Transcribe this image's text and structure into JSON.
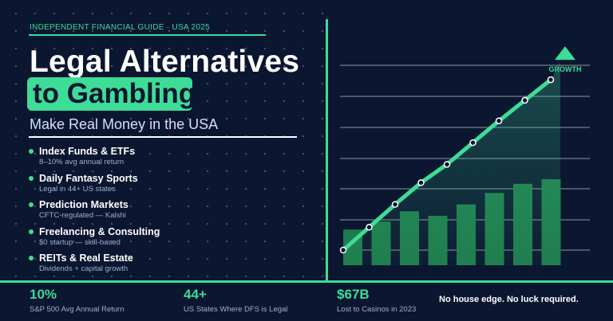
{
  "header": {
    "eyebrow": "INDEPENDENT FINANCIAL GUIDE  ·  USA 2025",
    "title_line1": "Legal Alternatives",
    "title_line2": "to Gambling",
    "subtitle": "Make Real Money in the USA"
  },
  "alternatives": [
    {
      "title": "Index Funds & ETFs",
      "subtitle": "8–10% avg annual return"
    },
    {
      "title": "Daily Fantasy Sports",
      "subtitle": "Legal in 44+ US states"
    },
    {
      "title": "Prediction Markets",
      "subtitle": "CFTC-regulated — Kalshi"
    },
    {
      "title": "Freelancing & Consulting",
      "subtitle": "$0 startup — skill-based"
    },
    {
      "title": "REITs & Real Estate",
      "subtitle": "Dividends + capital growth"
    }
  ],
  "chart_data": {
    "type": "line",
    "title": "",
    "xlabel": "",
    "ylabel": "",
    "annotation": "GROWTH",
    "grid": true,
    "line_values": [
      0,
      20,
      40,
      59,
      75,
      94,
      113,
      131,
      149
    ],
    "bar_values": [
      18,
      25,
      34,
      30,
      40,
      50,
      58,
      62
    ],
    "ylim": [
      0,
      170
    ]
  },
  "stats": [
    {
      "value": "10%",
      "label": "S&P 500 Avg Annual Return"
    },
    {
      "value": "44+",
      "label": "US States Where DFS is Legal"
    },
    {
      "value": "$67B",
      "label": "Lost to Casinos in 2023"
    }
  ],
  "tagline": "No house edge. No luck required.",
  "colors": {
    "background": "#0b1630",
    "accent": "#3ddc97",
    "bar": "#1f7a4c",
    "text_muted": "#9fb0cc"
  }
}
